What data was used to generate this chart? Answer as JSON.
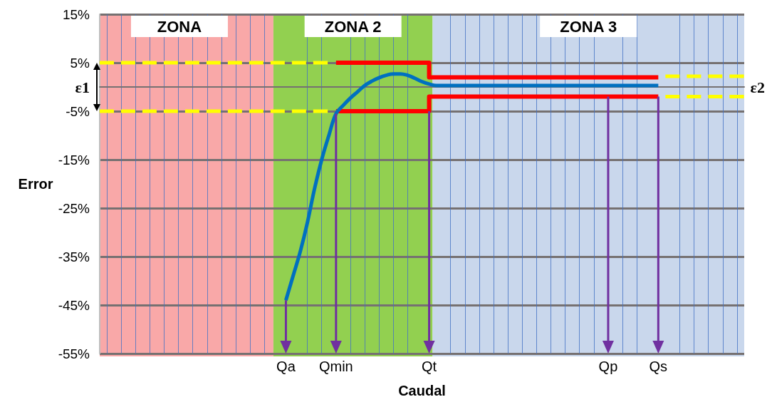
{
  "chart_data": {
    "type": "line",
    "xlabel": "Caudal",
    "ylabel": "Error",
    "categories": [
      null,
      null,
      null,
      null,
      null,
      null,
      null,
      null,
      null,
      null,
      null,
      null,
      null,
      null,
      null,
      null,
      null,
      null,
      null,
      null,
      null,
      null,
      null,
      null,
      null,
      null,
      "Qa",
      null,
      null,
      null,
      null,
      null,
      null,
      "Qmin",
      null,
      null,
      null,
      null,
      null,
      null,
      null,
      null,
      null,
      null,
      null,
      null,
      "Qt",
      null,
      null,
      null,
      null,
      null,
      null,
      null,
      null,
      null,
      null,
      null,
      null,
      null,
      null,
      null,
      null,
      null,
      null,
      null,
      null,
      null,
      null,
      null,
      null,
      "Qp",
      null,
      null,
      null,
      null,
      null,
      null,
      "Qs",
      null,
      null,
      null,
      null,
      null,
      null,
      null,
      null,
      null,
      null,
      null,
      null
    ],
    "series": [
      {
        "type": "step",
        "color": "#ff0000",
        "values": [
          null,
          null,
          null,
          null,
          null,
          null,
          null,
          null,
          null,
          null,
          null,
          null,
          null,
          null,
          null,
          null,
          null,
          null,
          null,
          null,
          null,
          null,
          null,
          null,
          null,
          null,
          null,
          null,
          null,
          null,
          null,
          null,
          null,
          5,
          5,
          5,
          5,
          5,
          5,
          5,
          5,
          5,
          5,
          5,
          5,
          5,
          2,
          2,
          2,
          2,
          2,
          2,
          2,
          2,
          2,
          2,
          2,
          2,
          2,
          2,
          2,
          2,
          2,
          2,
          2,
          2,
          2,
          2,
          2,
          2,
          2,
          2,
          2,
          2,
          2,
          2,
          2,
          2,
          2,
          null,
          null,
          null,
          null,
          null,
          null,
          null,
          null,
          null,
          null,
          null,
          null
        ]
      },
      {
        "type": "step",
        "color": "#ff0000",
        "values": [
          null,
          null,
          null,
          null,
          null,
          null,
          null,
          null,
          null,
          null,
          null,
          null,
          null,
          null,
          null,
          null,
          null,
          null,
          null,
          null,
          null,
          null,
          null,
          null,
          null,
          null,
          null,
          null,
          null,
          null,
          null,
          null,
          null,
          -5,
          -5,
          -5,
          -5,
          -5,
          -5,
          -5,
          -5,
          -5,
          -5,
          -5,
          -5,
          -5,
          -2,
          -2,
          -2,
          -2,
          -2,
          -2,
          -2,
          -2,
          -2,
          -2,
          -2,
          -2,
          -2,
          -2,
          -2,
          -2,
          -2,
          -2,
          -2,
          -2,
          -2,
          -2,
          -2,
          -2,
          -2,
          -2,
          -2,
          -2,
          -2,
          -2,
          -2,
          -2,
          -2,
          null,
          null,
          null,
          null,
          null,
          null,
          null,
          null,
          null,
          null,
          null,
          null
        ]
      },
      {
        "type": "line",
        "color": "#0070c0",
        "values": [
          null,
          null,
          null,
          null,
          null,
          null,
          null,
          null,
          null,
          null,
          null,
          null,
          null,
          null,
          null,
          null,
          null,
          null,
          null,
          null,
          null,
          null,
          null,
          null,
          null,
          null,
          -44,
          -39,
          -34,
          -28,
          -21,
          -15,
          -10,
          -5.5,
          -3.8,
          -2.3,
          -1,
          0.3,
          1.2,
          1.9,
          2.4,
          2.7,
          2.7,
          2.4,
          1.8,
          1.1,
          0.6,
          0.3,
          0.3,
          0.3,
          0.3,
          0.3,
          0.3,
          0.3,
          0.3,
          0.3,
          0.3,
          0.3,
          0.3,
          0.3,
          0.3,
          0.3,
          0.3,
          0.3,
          0.3,
          0.3,
          0.3,
          0.3,
          0.3,
          0.3,
          0.3,
          0.3,
          0.3,
          0.3,
          0.3,
          0.3,
          0.3,
          0.3,
          0.3,
          null,
          null,
          null,
          null,
          null,
          null,
          null,
          null,
          null,
          null,
          null,
          null
        ]
      },
      {
        "color": "#ffff00",
        "line_style": "dashed",
        "values": [
          5,
          5,
          5,
          5,
          5,
          5,
          5,
          5,
          5,
          5,
          5,
          5,
          5,
          5,
          5,
          5,
          5,
          5,
          5,
          5,
          5,
          5,
          5,
          5,
          5,
          5,
          5,
          5,
          5,
          5,
          5,
          5,
          5,
          null,
          null,
          null,
          null,
          null,
          null,
          null,
          null,
          null,
          null,
          null,
          null,
          null,
          null,
          null,
          null,
          null,
          null,
          null,
          null,
          null,
          null,
          null,
          null,
          null,
          null,
          null,
          null,
          null,
          null,
          null,
          null,
          null,
          null,
          null,
          null,
          null,
          null,
          null,
          null,
          null,
          null,
          null,
          null,
          null,
          null,
          null,
          null,
          null,
          null,
          null,
          null,
          null,
          null,
          null,
          null,
          null,
          null
        ]
      },
      {
        "type": "line",
        "color": "#ffff00",
        "line_style": "dashed",
        "values": [
          -5,
          -5,
          -5,
          -5,
          -5,
          -5,
          -5,
          -5,
          -5,
          -5,
          -5,
          -5,
          -5,
          -5,
          -5,
          -5,
          -5,
          -5,
          -5,
          -5,
          -5,
          -5,
          -5,
          -5,
          -5,
          -5,
          -5,
          -5,
          -5,
          -5,
          -5,
          -5,
          -5,
          null,
          null,
          null,
          null,
          null,
          null,
          null,
          null,
          null,
          null,
          null,
          null,
          null,
          null,
          null,
          null,
          null,
          null,
          null,
          null,
          null,
          null,
          null,
          null,
          null,
          null,
          null,
          null,
          null,
          null,
          null,
          null,
          null,
          null,
          null,
          null,
          null,
          null,
          null,
          null,
          null,
          null,
          null,
          null,
          null,
          null,
          null,
          null,
          null,
          null,
          null,
          null,
          null,
          null,
          null,
          null,
          null,
          null
        ]
      },
      {
        "type": "line",
        "color": "#ffff00",
        "line_style": "dashed",
        "values": [
          null,
          null,
          null,
          null,
          null,
          null,
          null,
          null,
          null,
          null,
          null,
          null,
          null,
          null,
          null,
          null,
          null,
          null,
          null,
          null,
          null,
          null,
          null,
          null,
          null,
          null,
          null,
          null,
          null,
          null,
          null,
          null,
          null,
          null,
          null,
          null,
          null,
          null,
          null,
          null,
          null,
          null,
          null,
          null,
          null,
          null,
          null,
          null,
          null,
          null,
          null,
          null,
          null,
          null,
          null,
          null,
          null,
          null,
          null,
          null,
          null,
          null,
          null,
          null,
          null,
          null,
          null,
          null,
          null,
          null,
          null,
          null,
          null,
          null,
          null,
          null,
          null,
          null,
          null,
          2.2,
          2.2,
          2.2,
          2.2,
          2.2,
          2.2,
          2.2,
          2.2,
          2.2,
          2.2,
          2.2,
          2.2
        ]
      },
      {
        "type": "line",
        "color": "#ffff00",
        "line_style": "dashed",
        "values": [
          null,
          null,
          null,
          null,
          null,
          null,
          null,
          null,
          null,
          null,
          null,
          null,
          null,
          null,
          null,
          null,
          null,
          null,
          null,
          null,
          null,
          null,
          null,
          null,
          null,
          null,
          null,
          null,
          null,
          null,
          null,
          null,
          null,
          null,
          null,
          null,
          null,
          null,
          null,
          null,
          null,
          null,
          null,
          null,
          null,
          null,
          null,
          null,
          null,
          null,
          null,
          null,
          null,
          null,
          null,
          null,
          null,
          null,
          null,
          null,
          null,
          null,
          null,
          null,
          null,
          null,
          null,
          null,
          null,
          null,
          null,
          null,
          null,
          null,
          null,
          null,
          null,
          null,
          null,
          -2,
          -2,
          -2,
          -2,
          -2,
          -2,
          -2,
          -2,
          -2,
          -2,
          -2,
          -2
        ]
      }
    ],
    "ylim": [
      -55,
      15
    ],
    "yticks": [
      {
        "value": -55,
        "label": "-55%"
      },
      {
        "value": -45,
        "label": "-45%"
      },
      {
        "value": -35,
        "label": "-35%"
      },
      {
        "value": -25,
        "label": "-25%"
      },
      {
        "value": -15,
        "label": "-15%"
      },
      {
        "value": -5,
        "label": "-5%"
      },
      {
        "value": 5,
        "label": "5%"
      },
      {
        "value": 15,
        "label": "15%"
      }
    ],
    "annotations": [
      "ZONA",
      "ZONA 2",
      "ZONA 3",
      "ε1",
      "ε2"
    ],
    "grid": true,
    "marker": "none"
  }
}
